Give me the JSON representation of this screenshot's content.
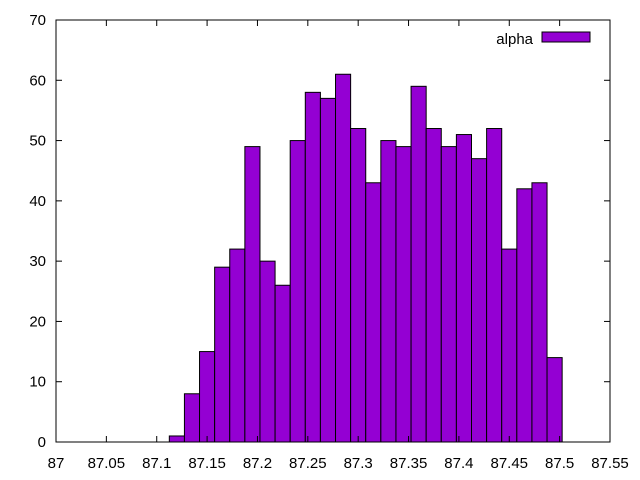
{
  "chart_data": {
    "type": "bar",
    "series": [
      {
        "name": "alpha",
        "color": "#9400d3",
        "bin_width": 0.015,
        "x": [
          87.12,
          87.135,
          87.15,
          87.165,
          87.18,
          87.195,
          87.21,
          87.225,
          87.24,
          87.255,
          87.27,
          87.285,
          87.3,
          87.315,
          87.33,
          87.345,
          87.36,
          87.375,
          87.39,
          87.405,
          87.42,
          87.435,
          87.45,
          87.465,
          87.48,
          87.495
        ],
        "values": [
          1,
          8,
          15,
          29,
          32,
          49,
          30,
          26,
          50,
          58,
          57,
          61,
          52,
          43,
          50,
          49,
          59,
          52,
          49,
          51,
          47,
          52,
          32,
          42,
          43,
          14
        ]
      }
    ],
    "xlim": [
      87,
      87.55
    ],
    "ylim": [
      0,
      70
    ],
    "x_ticks": [
      "87",
      "87.05",
      "87.1",
      "87.15",
      "87.2",
      "87.25",
      "87.3",
      "87.35",
      "87.4",
      "87.45",
      "87.5",
      "87.55"
    ],
    "y_ticks": [
      "0",
      "10",
      "20",
      "30",
      "40",
      "50",
      "60",
      "70"
    ],
    "legend_position": "top-right",
    "grid": false
  }
}
